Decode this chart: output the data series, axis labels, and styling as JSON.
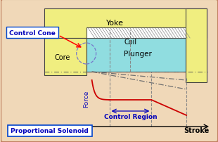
{
  "bg_color": "#f0d8b8",
  "outer_border_color": "#c08060",
  "yoke_text": "Yoke",
  "coil_text": "Coil",
  "core_text": "Core",
  "plunger_text": "Plunger",
  "control_cone_text": "Control Cone",
  "control_region_text": "Control Region",
  "proportional_text": "Proportional Solenoid",
  "force_text": "Force",
  "stroke_text": "Stroke",
  "yoke_color": "#f0ee80",
  "core_color": "#f0ee80",
  "plunger_color": "#90dde0",
  "coil_color": "#c8c8c8",
  "coil_inner_color": "#e8e8e8",
  "curve_color": "#cc0000",
  "dashdot_color": "#707070",
  "annotation_color": "#0000bb",
  "box_edge_color": "#0044cc",
  "axis_color": "#555555",
  "dashed_color": "#888888"
}
